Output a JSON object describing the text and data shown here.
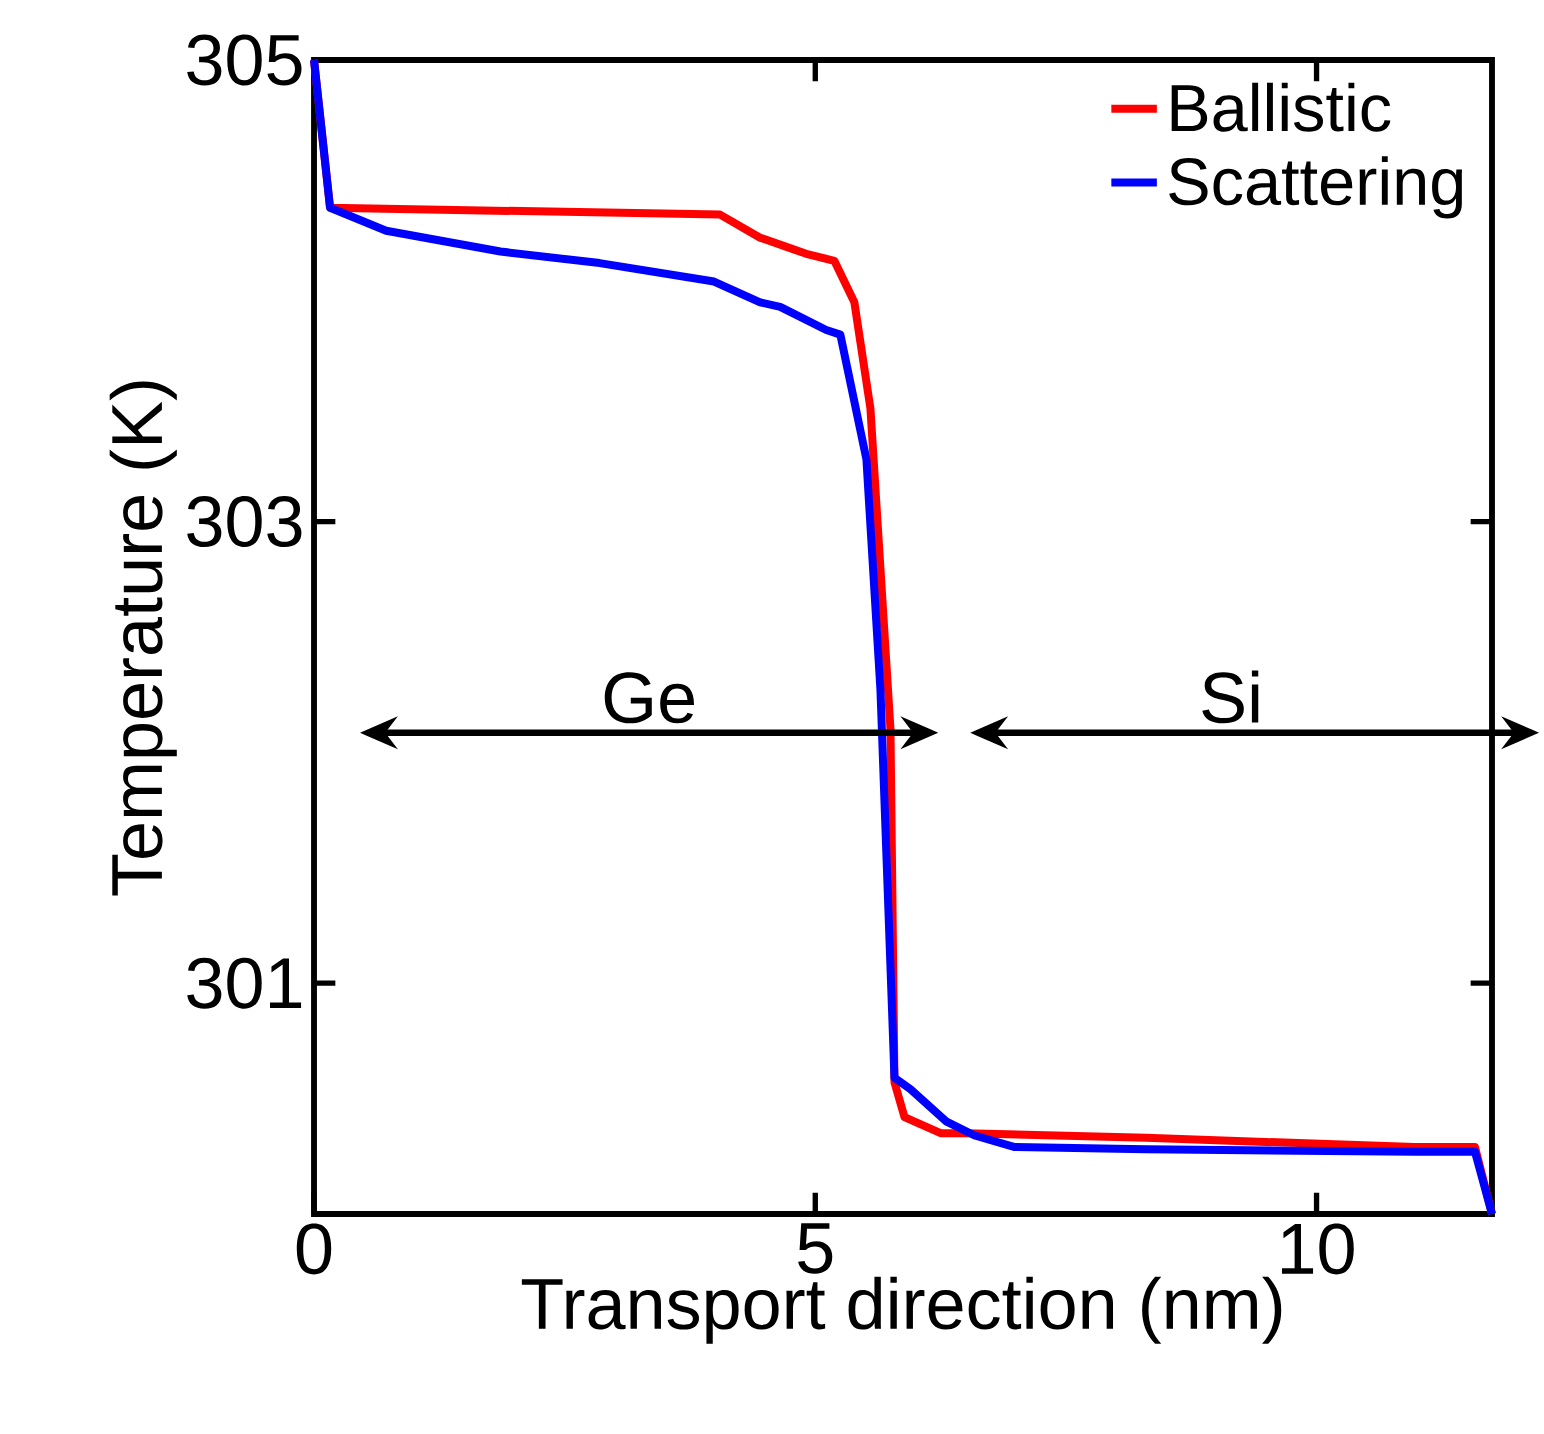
{
  "chart_data": {
    "type": "line",
    "xlabel": "Transport direction (nm)",
    "ylabel": "Temperature (K)",
    "xlim": [
      0,
      11.75
    ],
    "ylim": [
      300,
      305
    ],
    "xticks": [
      0,
      5,
      10
    ],
    "yticks": [
      301,
      303,
      305
    ],
    "grid": false,
    "legend": "top right",
    "marker": "none",
    "line_style": "solid",
    "series": [
      {
        "name": "Ballistic",
        "color": "#ff0000",
        "x": [
          0,
          0.16,
          4.05,
          4.45,
          4.91,
          5.19,
          5.39,
          5.55,
          5.75,
          5.79,
          5.89,
          6.25,
          6.5,
          8.3,
          10.98,
          11.58,
          11.75
        ],
        "values": [
          305,
          304.36,
          304.33,
          304.23,
          304.16,
          304.13,
          303.95,
          303.49,
          302.1,
          300.57,
          300.42,
          300.35,
          300.35,
          300.33,
          300.29,
          300.29,
          300
        ]
      },
      {
        "name": "Scattering",
        "color": "#0000ff",
        "x": [
          0,
          0.16,
          0.72,
          1.86,
          2.85,
          3.99,
          4.45,
          4.65,
          5.11,
          5.25,
          5.51,
          5.65,
          5.79,
          5.95,
          6.31,
          6.59,
          6.99,
          8.3,
          10.98,
          11.58,
          11.75
        ],
        "values": [
          305,
          304.36,
          304.26,
          304.17,
          304.12,
          304.04,
          303.95,
          303.93,
          303.83,
          303.81,
          303.27,
          302.27,
          300.59,
          300.54,
          300.4,
          300.34,
          300.29,
          300.28,
          300.27,
          300.27,
          300
        ]
      }
    ],
    "annotations": [
      "Ge",
      "Si"
    ]
  }
}
